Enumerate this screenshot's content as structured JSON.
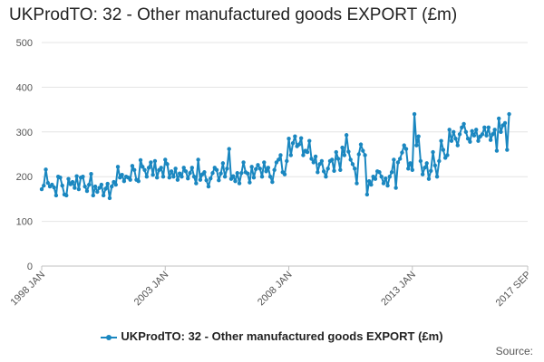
{
  "chart_data": {
    "type": "line",
    "title": "UKProdTO: 32 - Other manufactured goods EXPORT (£m)",
    "xlabel": "",
    "ylabel": "",
    "ylim": [
      0,
      500
    ],
    "yticks": [
      0,
      100,
      200,
      300,
      400,
      500
    ],
    "xtick_labels": [
      {
        "label": "1998 JAN",
        "index": 0
      },
      {
        "label": "2003 JAN",
        "index": 60
      },
      {
        "label": "2008 JAN",
        "index": 120
      },
      {
        "label": "2013 JAN",
        "index": 180
      },
      {
        "label": "2017 SEP",
        "index": 236
      }
    ],
    "legend": "bottom-center",
    "grid": true,
    "color": "#1a87c0",
    "source_label": "Source:",
    "series": [
      {
        "name": "UKProdTO: 32 - Other manufactured goods EXPORT (£m)",
        "start": "1998 JAN",
        "frequency": "monthly",
        "values": [
          172,
          180,
          216,
          186,
          178,
          182,
          176,
          158,
          200,
          198,
          180,
          160,
          158,
          195,
          183,
          188,
          175,
          201,
          172,
          198,
          200,
          178,
          168,
          182,
          206,
          158,
          178,
          166,
          175,
          182,
          158,
          173,
          184,
          152,
          178,
          188,
          182,
          222,
          198,
          204,
          190,
          200,
          198,
          193,
          224,
          215,
          193,
          190,
          237,
          222,
          215,
          200,
          220,
          232,
          204,
          235,
          198,
          215,
          220,
          200,
          238,
          228,
          198,
          212,
          200,
          218,
          193,
          207,
          200,
          220,
          212,
          196,
          208,
          220,
          200,
          185,
          238,
          193,
          205,
          210,
          192,
          178,
          196,
          208,
          220,
          215,
          192,
          207,
          230,
          200,
          218,
          262,
          195,
          201,
          190,
          208,
          185,
          208,
          232,
          210,
          207,
          187,
          222,
          198,
          217,
          226,
          218,
          200,
          232,
          212,
          220,
          200,
          188,
          215,
          232,
          238,
          248,
          210,
          205,
          235,
          285,
          248,
          275,
          290,
          268,
          272,
          286,
          248,
          258,
          255,
          280,
          240,
          232,
          245,
          210,
          228,
          235,
          212,
          200,
          218,
          235,
          238,
          213,
          255,
          240,
          215,
          265,
          248,
          293,
          256,
          238,
          228,
          218,
          185,
          250,
          272,
          258,
          248,
          160,
          190,
          182,
          200,
          195,
          212,
          210,
          200,
          185,
          196,
          180,
          200,
          210,
          238,
          175,
          232,
          240,
          254,
          270,
          262,
          218,
          230,
          215,
          340,
          270,
          290,
          235,
          205,
          220,
          230,
          195,
          213,
          255,
          225,
          200,
          235,
          280,
          260,
          242,
          248,
          305,
          280,
          300,
          285,
          270,
          295,
          310,
          318,
          300,
          285,
          278,
          302,
          292,
          305,
          280,
          290,
          295,
          310,
          292,
          310,
          282,
          295,
          305,
          258,
          330,
          300,
          315,
          320,
          260,
          340
        ]
      }
    ]
  }
}
